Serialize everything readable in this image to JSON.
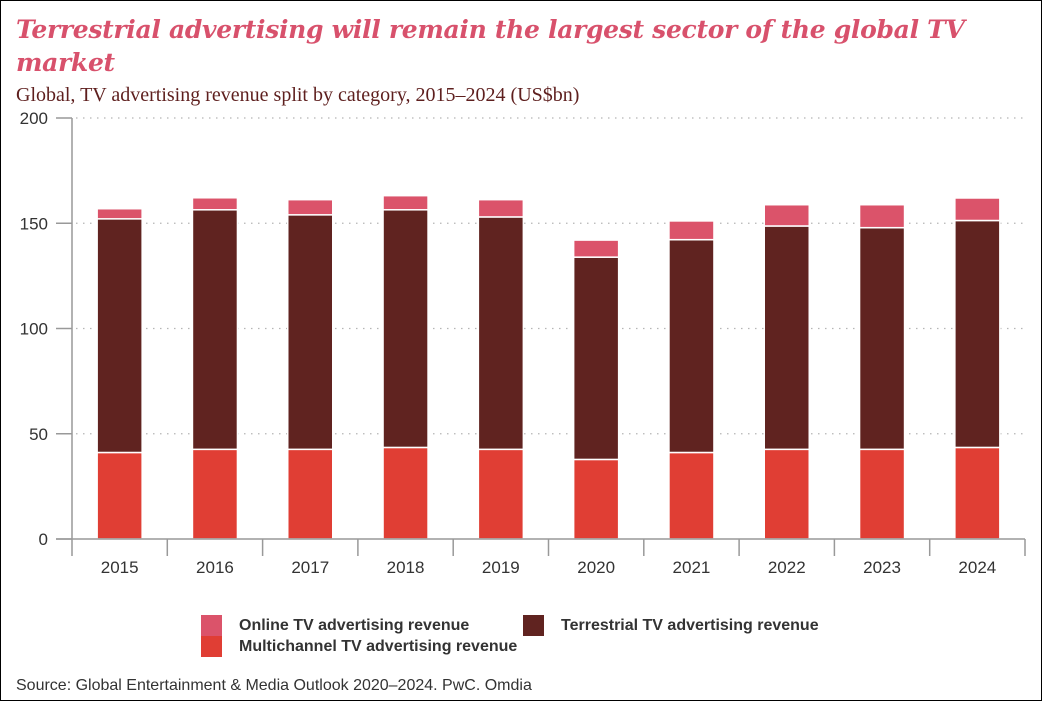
{
  "header": {
    "title": "Terrestrial advertising will remain the largest sector of the global TV market",
    "subtitle": "Global, TV advertising revenue split by category, 2015–2024 (US$bn)"
  },
  "footer": {
    "source": "Source: Global Entertainment & Media Outlook 2020–2024. PwC. Omdia"
  },
  "colors": {
    "online": "#DB536A",
    "terrestrial": "#602320",
    "multichannel": "#E03E34",
    "title": "#D8516C",
    "subtitle": "#5E1F1E"
  },
  "chart_data": {
    "type": "bar",
    "stacked": true,
    "title": "Terrestrial advertising will remain the largest sector of the global TV market",
    "subtitle": "Global, TV advertising revenue split by category, 2015–2024 (US$bn)",
    "xlabel": "",
    "ylabel": "",
    "ylim": [
      0,
      200
    ],
    "yticks": [
      0,
      50,
      100,
      150,
      200
    ],
    "grid": true,
    "legend_position": "bottom",
    "categories": [
      "2015",
      "2016",
      "2017",
      "2018",
      "2019",
      "2020",
      "2021",
      "2022",
      "2023",
      "2024"
    ],
    "series": [
      {
        "name": "Multichannel TV advertising revenue",
        "key": "multichannel",
        "values": [
          41.1,
          42.6,
          42.6,
          43.5,
          42.6,
          37.8,
          41.1,
          42.6,
          42.6,
          43.5
        ]
      },
      {
        "name": "Terrestrial TV advertising revenue",
        "key": "terrestrial",
        "values": [
          111.0,
          113.8,
          111.4,
          112.9,
          110.4,
          96.1,
          101.1,
          106.1,
          105.3,
          107.8
        ]
      },
      {
        "name": "Online TV advertising revenue",
        "key": "online",
        "values": [
          4.8,
          5.7,
          7.2,
          6.7,
          8.2,
          8.1,
          8.9,
          10.1,
          10.9,
          10.7
        ]
      }
    ]
  },
  "legend": {
    "items": [
      {
        "label": "Online TV advertising revenue",
        "key": "online"
      },
      {
        "label": "Terrestrial TV advertising revenue",
        "key": "terrestrial"
      },
      {
        "label": "Multichannel TV advertising revenue",
        "key": "multichannel"
      }
    ]
  }
}
